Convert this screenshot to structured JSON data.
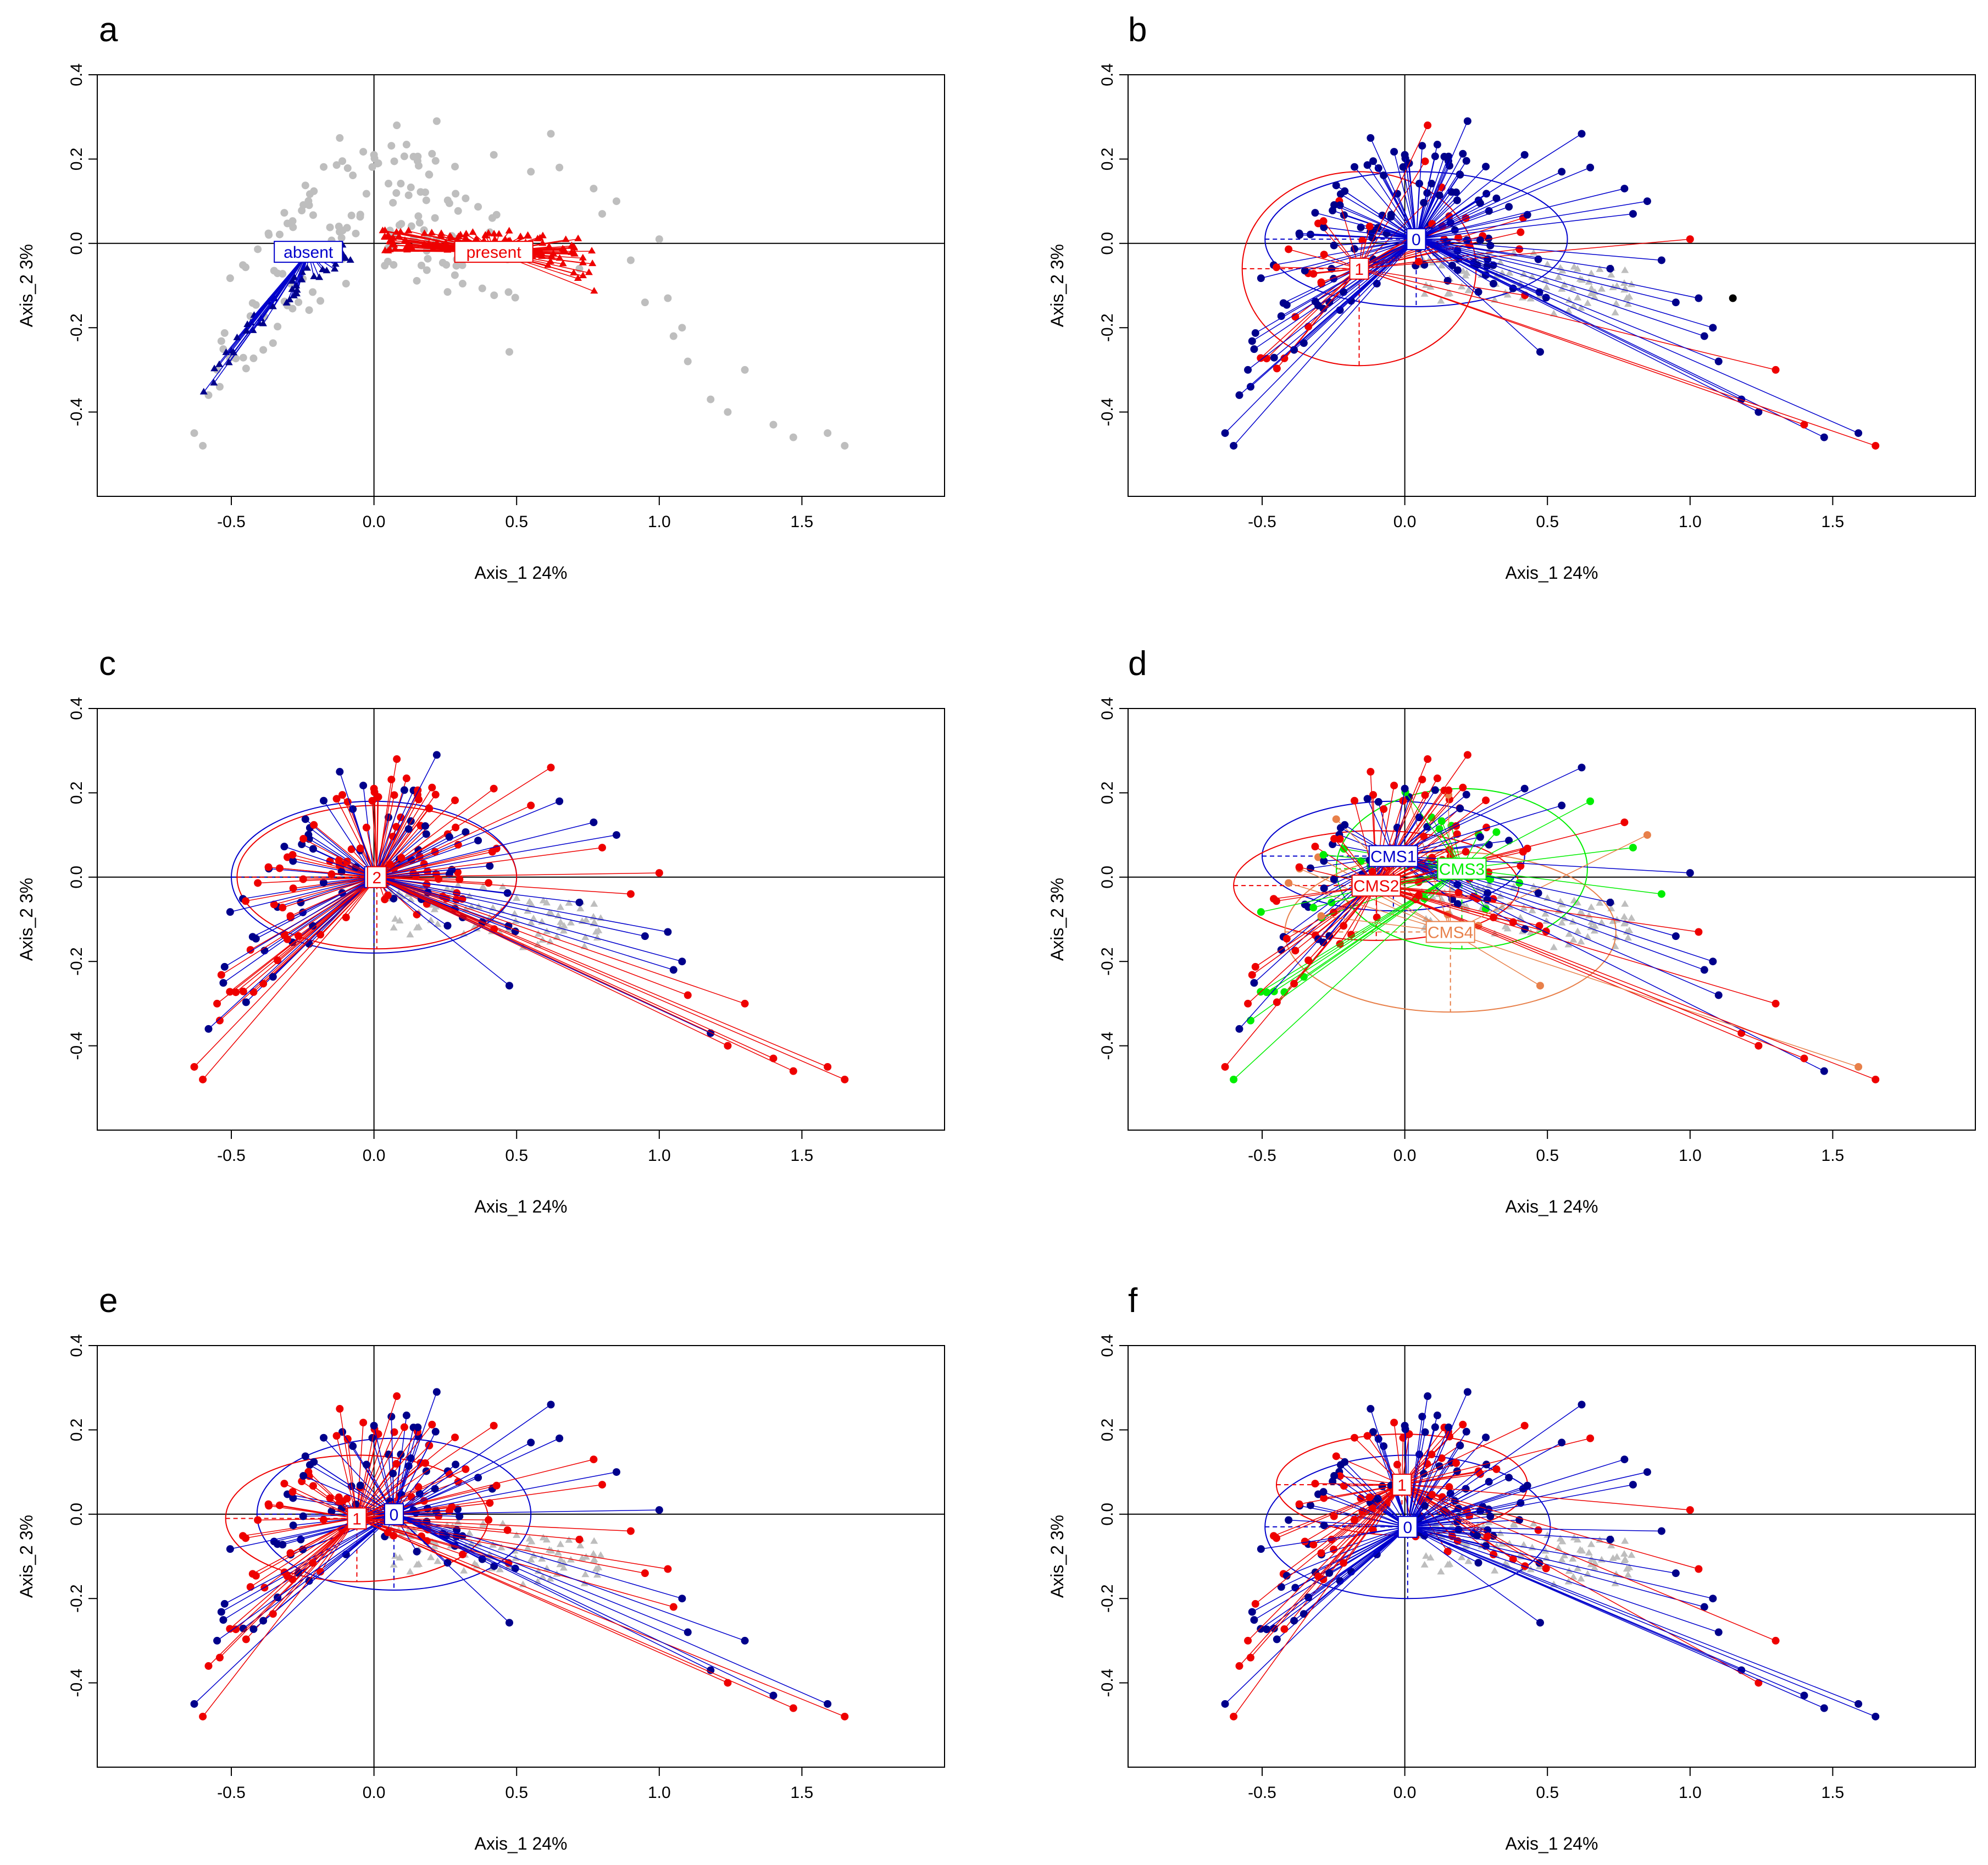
{
  "figure": {
    "type": "multi-panel ordination scatter (PCoA) with group centroids and ellipses"
  },
  "colors": {
    "blue": "#0000cc",
    "dark_blue": "#00008b",
    "red": "#ee0000",
    "green": "#00ee00",
    "orange": "#e8804a",
    "gray": "#bebebe",
    "black": "#000000"
  },
  "chart_data": [
    {
      "panel": "a",
      "type": "scatter",
      "xlabel": "Axis_1 24%",
      "ylabel": "Axis_2 3%",
      "xlim": [
        -0.97,
        2.0
      ],
      "ylim": [
        -0.6,
        0.4
      ],
      "xticks": [
        "-0.5",
        "0.0",
        "0.5",
        "1.0",
        "1.5"
      ],
      "yticks": [
        "-0.4",
        "-0.2",
        "0.0",
        "0.2",
        "0.4"
      ],
      "groups": [
        {
          "name": "absent",
          "color": "blue",
          "centroid": [
            -0.23,
            -0.02
          ],
          "sd": [
            0.12,
            0.06
          ],
          "marker": "triangle"
        },
        {
          "name": "present",
          "color": "red",
          "centroid": [
            0.42,
            -0.02
          ],
          "sd": [
            0.18,
            0.04
          ],
          "marker": "triangle"
        }
      ]
    },
    {
      "panel": "b",
      "type": "scatter",
      "xlabel": "Axis_1 24%",
      "ylabel": "Axis_2 3%",
      "xlim": [
        -0.97,
        2.0
      ],
      "ylim": [
        -0.6,
        0.4
      ],
      "xticks": [
        "-0.5",
        "0.0",
        "0.5",
        "1.0",
        "1.5"
      ],
      "yticks": [
        "-0.4",
        "-0.2",
        "0.0",
        "0.2",
        "0.4"
      ],
      "groups": [
        {
          "name": "0",
          "color": "blue",
          "centroid": [
            0.04,
            0.01
          ],
          "sd": [
            0.53,
            0.16
          ]
        },
        {
          "name": "1",
          "color": "red",
          "centroid": [
            -0.16,
            -0.06
          ],
          "sd": [
            0.41,
            0.23
          ]
        }
      ]
    },
    {
      "panel": "c",
      "type": "scatter",
      "xlabel": "Axis_1 24%",
      "ylabel": "Axis_2 3%",
      "xlim": [
        -0.97,
        2.0
      ],
      "ylim": [
        -0.6,
        0.4
      ],
      "xticks": [
        "-0.5",
        "0.0",
        "0.5",
        "1.0",
        "1.5"
      ],
      "yticks": [
        "-0.4",
        "-0.2",
        "0.0",
        "0.2",
        "0.4"
      ],
      "groups": [
        {
          "name": "1",
          "color": "blue",
          "centroid": [
            0.0,
            0.0
          ],
          "sd": [
            0.5,
            0.18
          ]
        },
        {
          "name": "2",
          "color": "red",
          "centroid": [
            0.01,
            0.0
          ],
          "sd": [
            0.49,
            0.17
          ]
        }
      ]
    },
    {
      "panel": "d",
      "type": "scatter",
      "xlabel": "Axis_1 24%",
      "ylabel": "Axis_2 3%",
      "xlim": [
        -0.97,
        2.0
      ],
      "ylim": [
        -0.6,
        0.4
      ],
      "xticks": [
        "-0.5",
        "0.0",
        "0.5",
        "1.0",
        "1.5"
      ],
      "yticks": [
        "-0.4",
        "-0.2",
        "0.0",
        "0.2",
        "0.4"
      ],
      "groups": [
        {
          "name": "CMS1",
          "color": "blue",
          "centroid": [
            -0.04,
            0.05
          ],
          "sd": [
            0.46,
            0.13
          ]
        },
        {
          "name": "CMS2",
          "color": "red",
          "centroid": [
            -0.1,
            -0.02
          ],
          "sd": [
            0.5,
            0.13
          ]
        },
        {
          "name": "CMS3",
          "color": "green",
          "centroid": [
            0.2,
            0.02
          ],
          "sd": [
            0.44,
            0.19
          ]
        },
        {
          "name": "CMS4",
          "color": "orange",
          "centroid": [
            0.16,
            -0.13
          ],
          "sd": [
            0.58,
            0.19
          ]
        }
      ]
    },
    {
      "panel": "e",
      "type": "scatter",
      "xlabel": "Axis_1 24%",
      "ylabel": "Axis_2 3%",
      "xlim": [
        -0.97,
        2.0
      ],
      "ylim": [
        -0.6,
        0.4
      ],
      "xticks": [
        "-0.5",
        "0.0",
        "0.5",
        "1.0",
        "1.5"
      ],
      "yticks": [
        "-0.4",
        "-0.2",
        "0.0",
        "0.2",
        "0.4"
      ],
      "groups": [
        {
          "name": "0",
          "color": "blue",
          "centroid": [
            0.07,
            0.0
          ],
          "sd": [
            0.48,
            0.18
          ]
        },
        {
          "name": "1",
          "color": "red",
          "centroid": [
            -0.06,
            -0.01
          ],
          "sd": [
            0.46,
            0.15
          ]
        }
      ]
    },
    {
      "panel": "f",
      "type": "scatter",
      "xlabel": "Axis_1 24%",
      "ylabel": "Axis_2 3%",
      "xlim": [
        -0.97,
        2.0
      ],
      "ylim": [
        -0.6,
        0.4
      ],
      "xticks": [
        "-0.5",
        "0.0",
        "0.5",
        "1.0",
        "1.5"
      ],
      "yticks": [
        "-0.4",
        "-0.2",
        "0.0",
        "0.2",
        "0.4"
      ],
      "groups": [
        {
          "name": "0",
          "color": "blue",
          "centroid": [
            0.01,
            -0.03
          ],
          "sd": [
            0.5,
            0.17
          ]
        },
        {
          "name": "1",
          "color": "red",
          "centroid": [
            -0.01,
            0.07
          ],
          "sd": [
            0.44,
            0.12
          ]
        }
      ]
    }
  ]
}
